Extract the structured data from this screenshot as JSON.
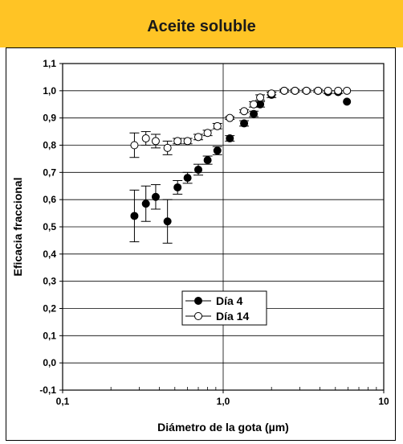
{
  "title": "Aceite soluble",
  "colors": {
    "title_bar": "#ffc425",
    "ink": "#000000"
  },
  "chart_data": {
    "type": "scatter",
    "title": "Aceite soluble",
    "xlabel": "Diámetro de la gota (µm)",
    "ylabel": "Eficacia fraccional",
    "x_scale": "log",
    "xlim": [
      0.1,
      10
    ],
    "ylim": [
      -0.1,
      1.1
    ],
    "x_ticks": [
      "0,1",
      "1,0",
      "10"
    ],
    "y_ticks": [
      "-0,1",
      "0,0",
      "0,1",
      "0,2",
      "0,3",
      "0,4",
      "0,5",
      "0,6",
      "0,7",
      "0,8",
      "0,9",
      "1,0",
      "1,1"
    ],
    "grid": true,
    "legend_position": "lower-center",
    "series": [
      {
        "name": "Día 4",
        "marker": "filled-circle",
        "points": [
          {
            "x": 0.28,
            "y": 0.54,
            "err": 0.095
          },
          {
            "x": 0.33,
            "y": 0.585,
            "err": 0.065
          },
          {
            "x": 0.38,
            "y": 0.61,
            "err": 0.045
          },
          {
            "x": 0.45,
            "y": 0.52,
            "err": 0.08
          },
          {
            "x": 0.52,
            "y": 0.645,
            "err": 0.025
          },
          {
            "x": 0.6,
            "y": 0.68,
            "err": 0.02
          },
          {
            "x": 0.7,
            "y": 0.71,
            "err": 0.02
          },
          {
            "x": 0.8,
            "y": 0.745,
            "err": 0.015
          },
          {
            "x": 0.92,
            "y": 0.78,
            "err": 0.015
          },
          {
            "x": 1.1,
            "y": 0.825,
            "err": 0.01
          },
          {
            "x": 1.35,
            "y": 0.88,
            "err": 0.01
          },
          {
            "x": 1.55,
            "y": 0.915,
            "err": 0.01
          },
          {
            "x": 1.7,
            "y": 0.95,
            "err": 0.01
          },
          {
            "x": 2.0,
            "y": 0.985,
            "err": 0.01
          },
          {
            "x": 2.4,
            "y": 1.0,
            "err": 0.005
          },
          {
            "x": 2.8,
            "y": 1.0,
            "err": 0.005
          },
          {
            "x": 3.3,
            "y": 1.0,
            "err": 0.005
          },
          {
            "x": 3.9,
            "y": 1.0,
            "err": 0.005
          },
          {
            "x": 4.5,
            "y": 0.995,
            "err": 0.005
          },
          {
            "x": 5.2,
            "y": 0.995,
            "err": 0.005
          },
          {
            "x": 5.9,
            "y": 0.96,
            "err": 0.0
          }
        ]
      },
      {
        "name": "Día 14",
        "marker": "open-circle",
        "points": [
          {
            "x": 0.28,
            "y": 0.8,
            "err": 0.045
          },
          {
            "x": 0.33,
            "y": 0.825,
            "err": 0.025
          },
          {
            "x": 0.38,
            "y": 0.815,
            "err": 0.025
          },
          {
            "x": 0.45,
            "y": 0.79,
            "err": 0.025
          },
          {
            "x": 0.52,
            "y": 0.815,
            "err": 0.01
          },
          {
            "x": 0.6,
            "y": 0.815,
            "err": 0.01
          },
          {
            "x": 0.7,
            "y": 0.83,
            "err": 0.01
          },
          {
            "x": 0.8,
            "y": 0.845,
            "err": 0.01
          },
          {
            "x": 0.92,
            "y": 0.87,
            "err": 0.01
          },
          {
            "x": 1.1,
            "y": 0.9,
            "err": 0.005
          },
          {
            "x": 1.35,
            "y": 0.925,
            "err": 0.005
          },
          {
            "x": 1.55,
            "y": 0.95,
            "err": 0.01
          },
          {
            "x": 1.7,
            "y": 0.975,
            "err": 0.01
          },
          {
            "x": 2.0,
            "y": 0.99,
            "err": 0.005
          },
          {
            "x": 2.4,
            "y": 1.0,
            "err": 0.0
          },
          {
            "x": 2.8,
            "y": 1.0,
            "err": 0.0
          },
          {
            "x": 3.3,
            "y": 1.0,
            "err": 0.0
          },
          {
            "x": 3.9,
            "y": 1.0,
            "err": 0.0
          },
          {
            "x": 4.5,
            "y": 1.0,
            "err": 0.0
          },
          {
            "x": 5.2,
            "y": 1.0,
            "err": 0.0
          },
          {
            "x": 5.9,
            "y": 1.0,
            "err": 0.0
          }
        ]
      }
    ]
  }
}
